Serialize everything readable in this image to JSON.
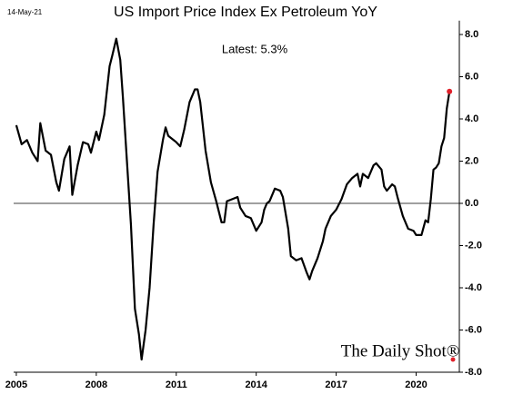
{
  "chart_data": {
    "type": "line",
    "title": "US Import Price Index Ex Petroleum YoY",
    "date": "14-May-21",
    "annotation": "Latest:  5.3%",
    "source": "The Daily Shot®",
    "color": "#000000",
    "marker_color": "#e0202a",
    "zero_line": true,
    "x": [
      2005.0,
      2005.2,
      2005.4,
      2005.6,
      2005.8,
      2005.9,
      2006.1,
      2006.3,
      2006.5,
      2006.6,
      2006.8,
      2007.0,
      2007.1,
      2007.3,
      2007.5,
      2007.7,
      2007.8,
      2008.0,
      2008.1,
      2008.3,
      2008.5,
      2008.6,
      2008.75,
      2008.9,
      2009.0,
      2009.15,
      2009.3,
      2009.45,
      2009.6,
      2009.7,
      2009.85,
      2010.0,
      2010.15,
      2010.3,
      2010.5,
      2010.6,
      2010.7,
      2010.9,
      2011.0,
      2011.15,
      2011.3,
      2011.5,
      2011.7,
      2011.8,
      2011.9,
      2012.1,
      2012.3,
      2012.5,
      2012.7,
      2012.8,
      2012.9,
      2013.1,
      2013.3,
      2013.4,
      2013.6,
      2013.8,
      2014.0,
      2014.2,
      2014.3,
      2014.4,
      2014.5,
      2014.7,
      2014.9,
      2015.0,
      2015.2,
      2015.3,
      2015.5,
      2015.7,
      2015.9,
      2016.0,
      2016.1,
      2016.3,
      2016.5,
      2016.6,
      2016.8,
      2017.0,
      2017.2,
      2017.4,
      2017.6,
      2017.8,
      2017.9,
      2018.0,
      2018.2,
      2018.4,
      2018.5,
      2018.7,
      2018.8,
      2018.9,
      2019.1,
      2019.2,
      2019.3,
      2019.5,
      2019.7,
      2019.9,
      2020.0,
      2020.1,
      2020.2,
      2020.35,
      2020.45,
      2020.55,
      2020.65,
      2020.75,
      2020.85,
      2020.95,
      2021.05,
      2021.15,
      2021.25
    ],
    "values": [
      3.7,
      2.8,
      3.0,
      2.4,
      2.0,
      3.8,
      2.5,
      2.3,
      1.0,
      0.6,
      2.1,
      2.7,
      0.4,
      1.8,
      2.9,
      2.8,
      2.4,
      3.4,
      3.0,
      4.2,
      6.5,
      7.0,
      7.8,
      6.8,
      5.0,
      2.0,
      -1.0,
      -5.0,
      -6.2,
      -7.4,
      -6.0,
      -4.0,
      -1.0,
      1.5,
      3.0,
      3.6,
      3.2,
      3.0,
      2.9,
      2.7,
      3.5,
      4.8,
      5.4,
      5.4,
      4.8,
      2.5,
      1.0,
      0.1,
      -0.9,
      -0.9,
      0.1,
      0.2,
      0.3,
      -0.2,
      -0.6,
      -0.7,
      -1.3,
      -0.9,
      -0.3,
      0.0,
      0.1,
      0.7,
      0.6,
      0.3,
      -1.2,
      -2.5,
      -2.7,
      -2.6,
      -3.3,
      -3.6,
      -3.2,
      -2.6,
      -1.8,
      -1.2,
      -0.6,
      -0.3,
      0.2,
      0.9,
      1.2,
      1.4,
      0.8,
      1.4,
      1.2,
      1.8,
      1.9,
      1.6,
      0.8,
      0.6,
      0.9,
      0.8,
      0.3,
      -0.6,
      -1.2,
      -1.3,
      -1.5,
      -1.5,
      -1.5,
      -0.8,
      -0.9,
      0.2,
      1.6,
      1.7,
      1.9,
      2.7,
      3.1,
      4.5,
      5.3
    ],
    "xlim": [
      2004.9,
      2021.62
    ],
    "xticks": [
      2005,
      2008,
      2011,
      2014,
      2017,
      2020
    ],
    "ylim": [
      -8.0,
      8.4
    ],
    "yticks": [
      {
        "value": -8,
        "label": "-8.0"
      },
      {
        "value": -6,
        "label": "-6.0"
      },
      {
        "value": -4,
        "label": "-4.0"
      },
      {
        "value": -2,
        "label": "-2.0"
      },
      {
        "value": 0,
        "label": "0.0"
      },
      {
        "value": 2,
        "label": "2.0"
      },
      {
        "value": 4,
        "label": "4.0"
      },
      {
        "value": 6,
        "label": "6.0"
      },
      {
        "value": 8,
        "label": "8.0"
      }
    ]
  }
}
